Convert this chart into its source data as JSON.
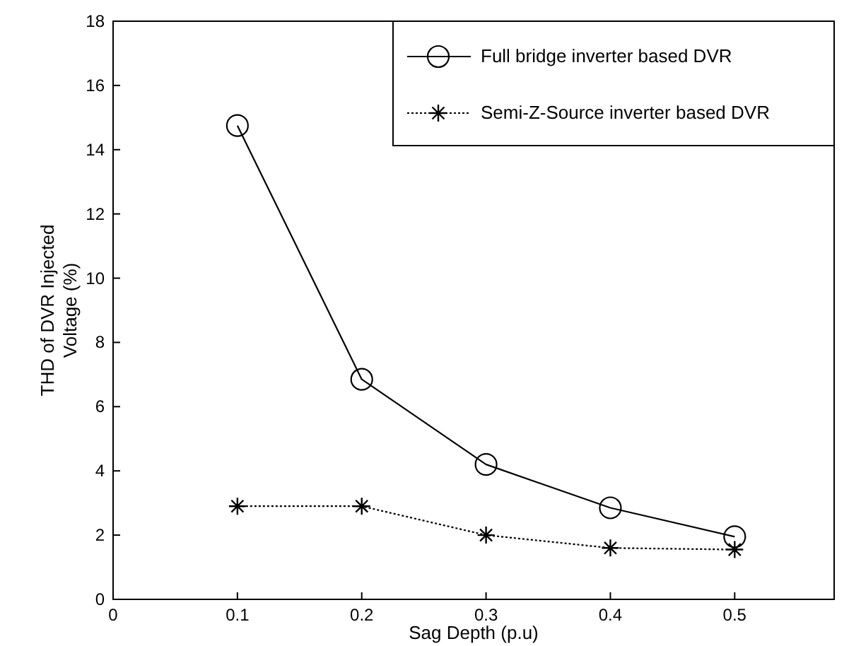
{
  "chart_data": {
    "type": "line",
    "xlabel": "Sag Depth (p.u)",
    "ylabel": "THD of DVR Injected Voltage (%)",
    "x": [
      0.1,
      0.2,
      0.3,
      0.4,
      0.5
    ],
    "xlim": [
      0,
      0.58
    ],
    "xticks": [
      0,
      0.1,
      0.2,
      0.3,
      0.4,
      0.5
    ],
    "ylim": [
      0,
      18
    ],
    "yticks": [
      0,
      2,
      4,
      6,
      8,
      10,
      12,
      14,
      16,
      18
    ],
    "grid": false,
    "legend": "top right",
    "series": [
      {
        "name": "Full bridge inverter based DVR",
        "color": "#000000",
        "values": [
          14.75,
          6.85,
          4.2,
          2.85,
          1.95
        ],
        "marker": "circle",
        "line_style": "solid"
      },
      {
        "name": "Semi-Z-Source inverter based DVR",
        "color": "#000000",
        "values": [
          2.9,
          2.9,
          2.0,
          1.6,
          1.55
        ],
        "marker": "cross",
        "line_style": "dotted"
      }
    ]
  }
}
